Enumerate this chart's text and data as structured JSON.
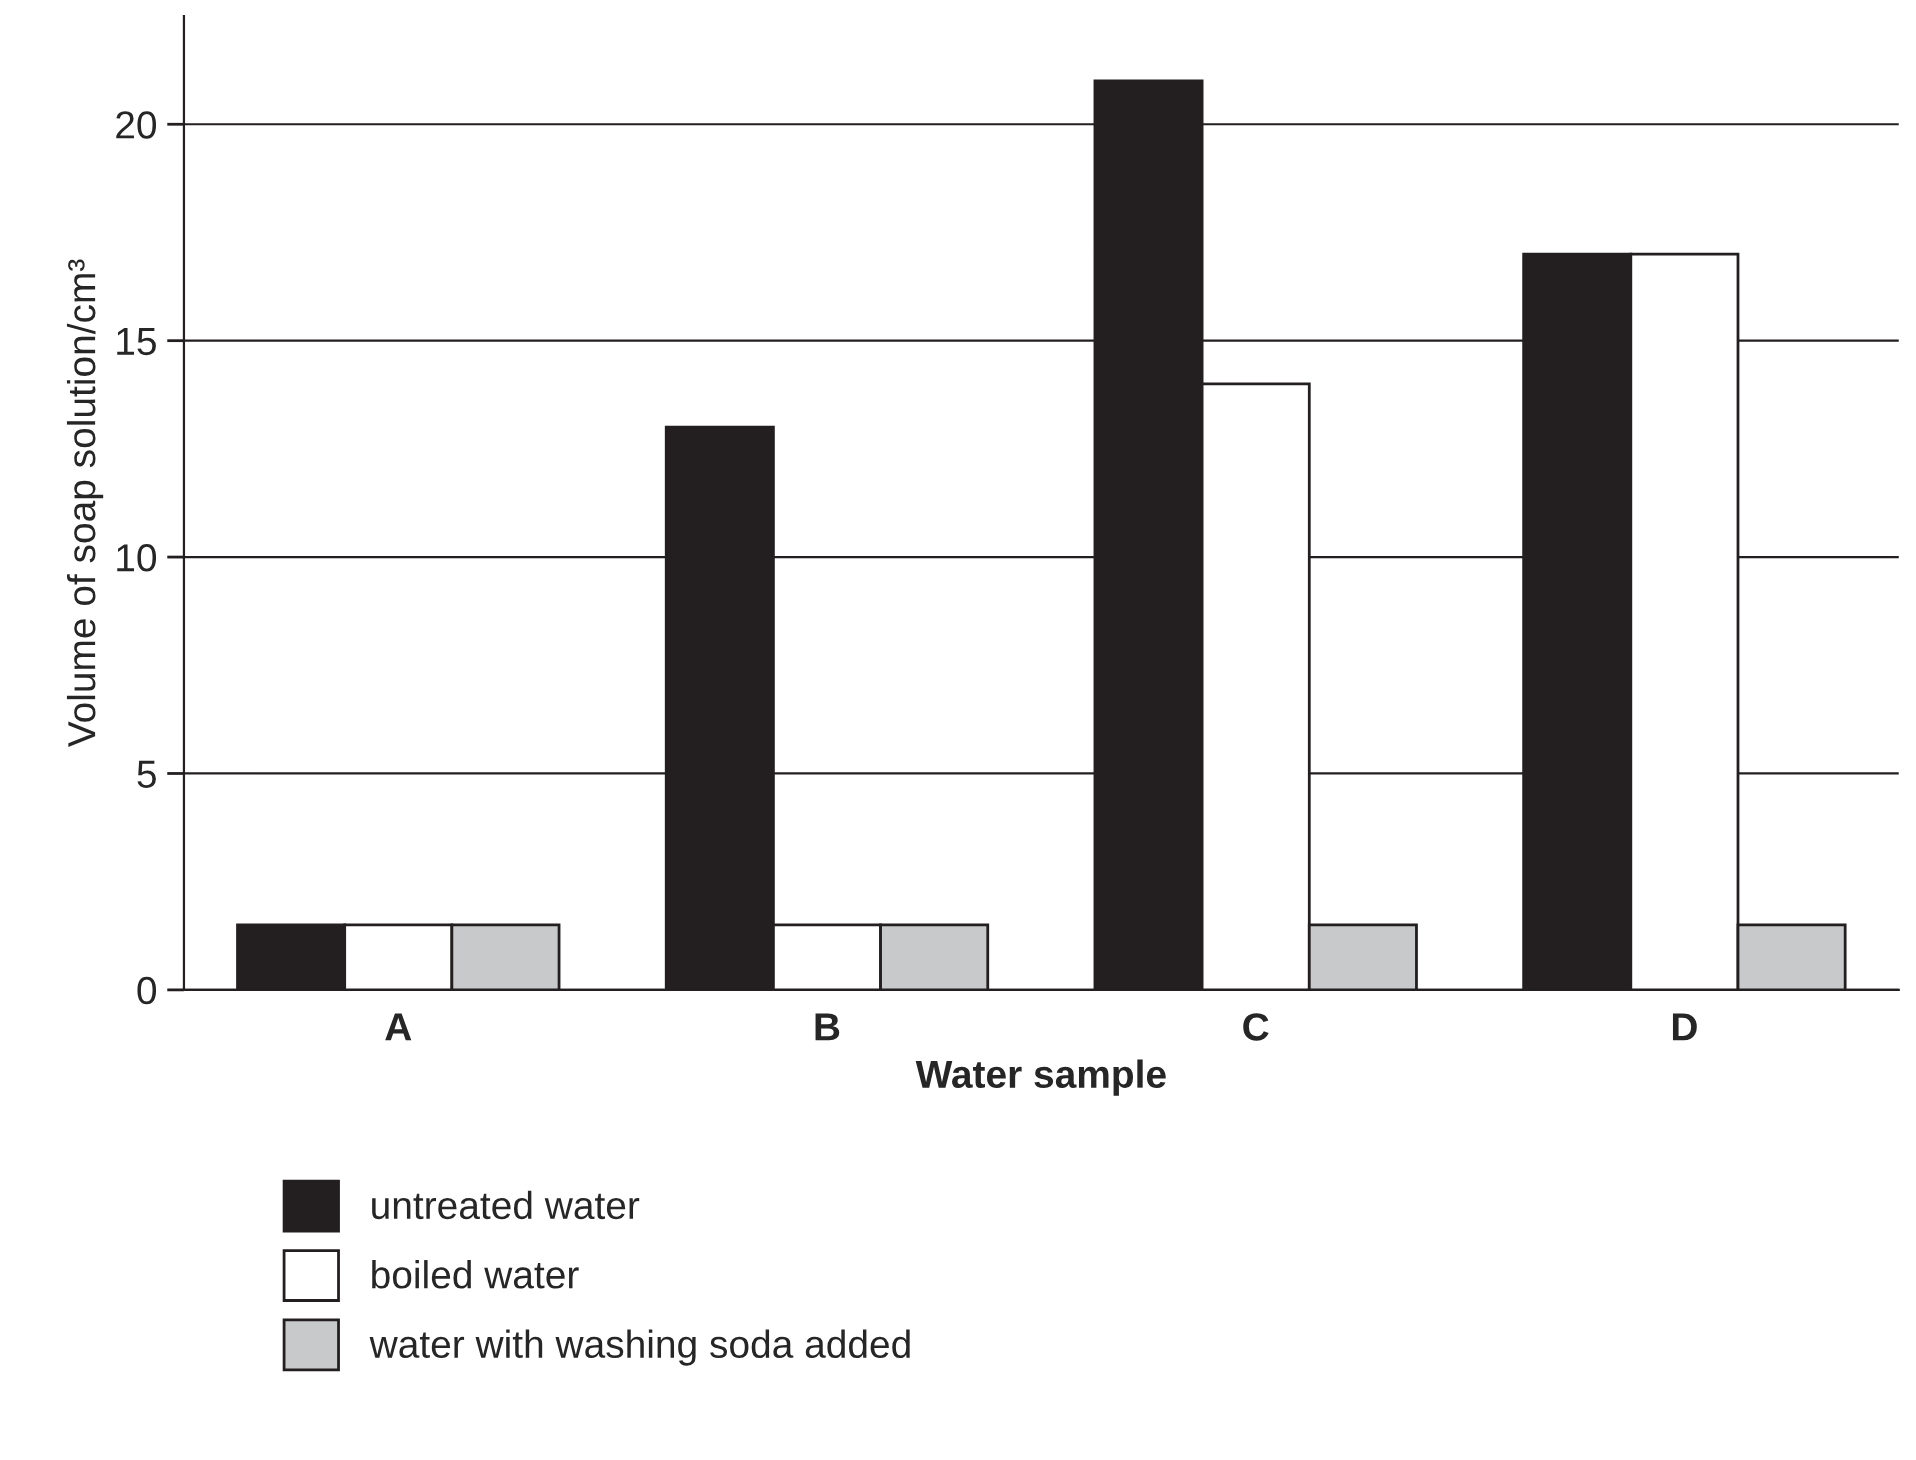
{
  "chart_data": {
    "type": "bar",
    "xlabel": "Water sample",
    "ylabel": "Volume of soap solution/cm³",
    "categories": [
      "A",
      "B",
      "C",
      "D"
    ],
    "series": [
      {
        "name": "untreated water",
        "color": "#231f20",
        "values": [
          1.5,
          13,
          21,
          17
        ]
      },
      {
        "name": "boiled water",
        "color": "#ffffff",
        "values": [
          1.5,
          1.5,
          14,
          17
        ]
      },
      {
        "name": "water with washing soda added",
        "color": "#c8c9cb",
        "values": [
          1.5,
          1.5,
          1.5,
          1.5
        ]
      }
    ],
    "ylim": [
      0,
      22.5
    ],
    "yticks": [
      0,
      5,
      10,
      15,
      20
    ],
    "grid": "y",
    "legend": "bottom"
  }
}
